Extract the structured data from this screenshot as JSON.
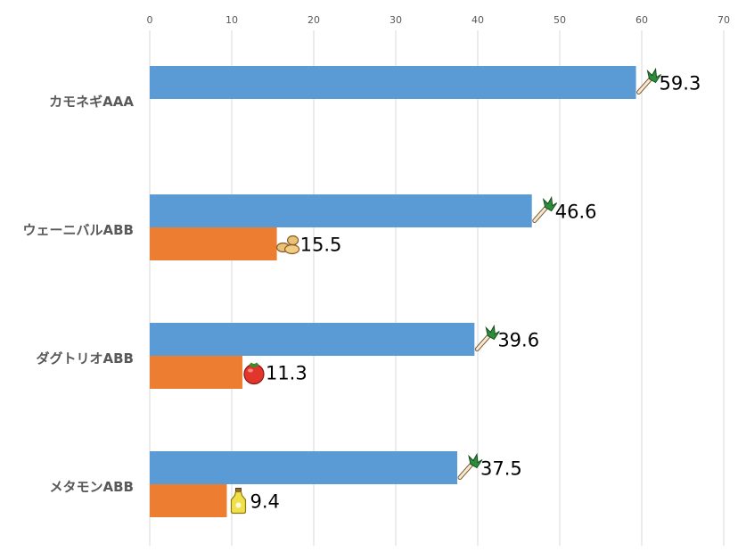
{
  "chart_data": {
    "type": "bar",
    "orientation": "horizontal",
    "categories": [
      "カモネギAAA",
      "ウェーニバルABB",
      "ダグトリオABB",
      "メタモンABB"
    ],
    "xlim": [
      0,
      70
    ],
    "xticks": [
      0,
      10,
      20,
      30,
      40,
      50,
      60,
      70
    ],
    "grid": true,
    "legend": "none",
    "colors": {
      "series1": "#5b9bd5",
      "series2": "#ed7d31"
    },
    "bars": [
      {
        "category": "カモネギAAA",
        "entries": [
          {
            "series": 0,
            "value": 59.3,
            "label": "59.3",
            "icon": "leek-icon"
          }
        ]
      },
      {
        "category": "ウェーニバルABB",
        "entries": [
          {
            "series": 0,
            "value": 46.6,
            "label": "46.6",
            "icon": "leek-icon"
          },
          {
            "series": 1,
            "value": 15.5,
            "label": "15.5",
            "icon": "ginger-icon"
          }
        ]
      },
      {
        "category": "ダグトリオABB",
        "entries": [
          {
            "series": 0,
            "value": 39.6,
            "label": "39.6",
            "icon": "leek-icon"
          },
          {
            "series": 1,
            "value": 11.3,
            "label": "11.3",
            "icon": "tomato-icon"
          }
        ]
      },
      {
        "category": "メタモンABB",
        "entries": [
          {
            "series": 0,
            "value": 37.5,
            "label": "37.5",
            "icon": "leek-icon"
          },
          {
            "series": 1,
            "value": 9.4,
            "label": "9.4",
            "icon": "oil-bottle-icon"
          }
        ]
      }
    ]
  }
}
